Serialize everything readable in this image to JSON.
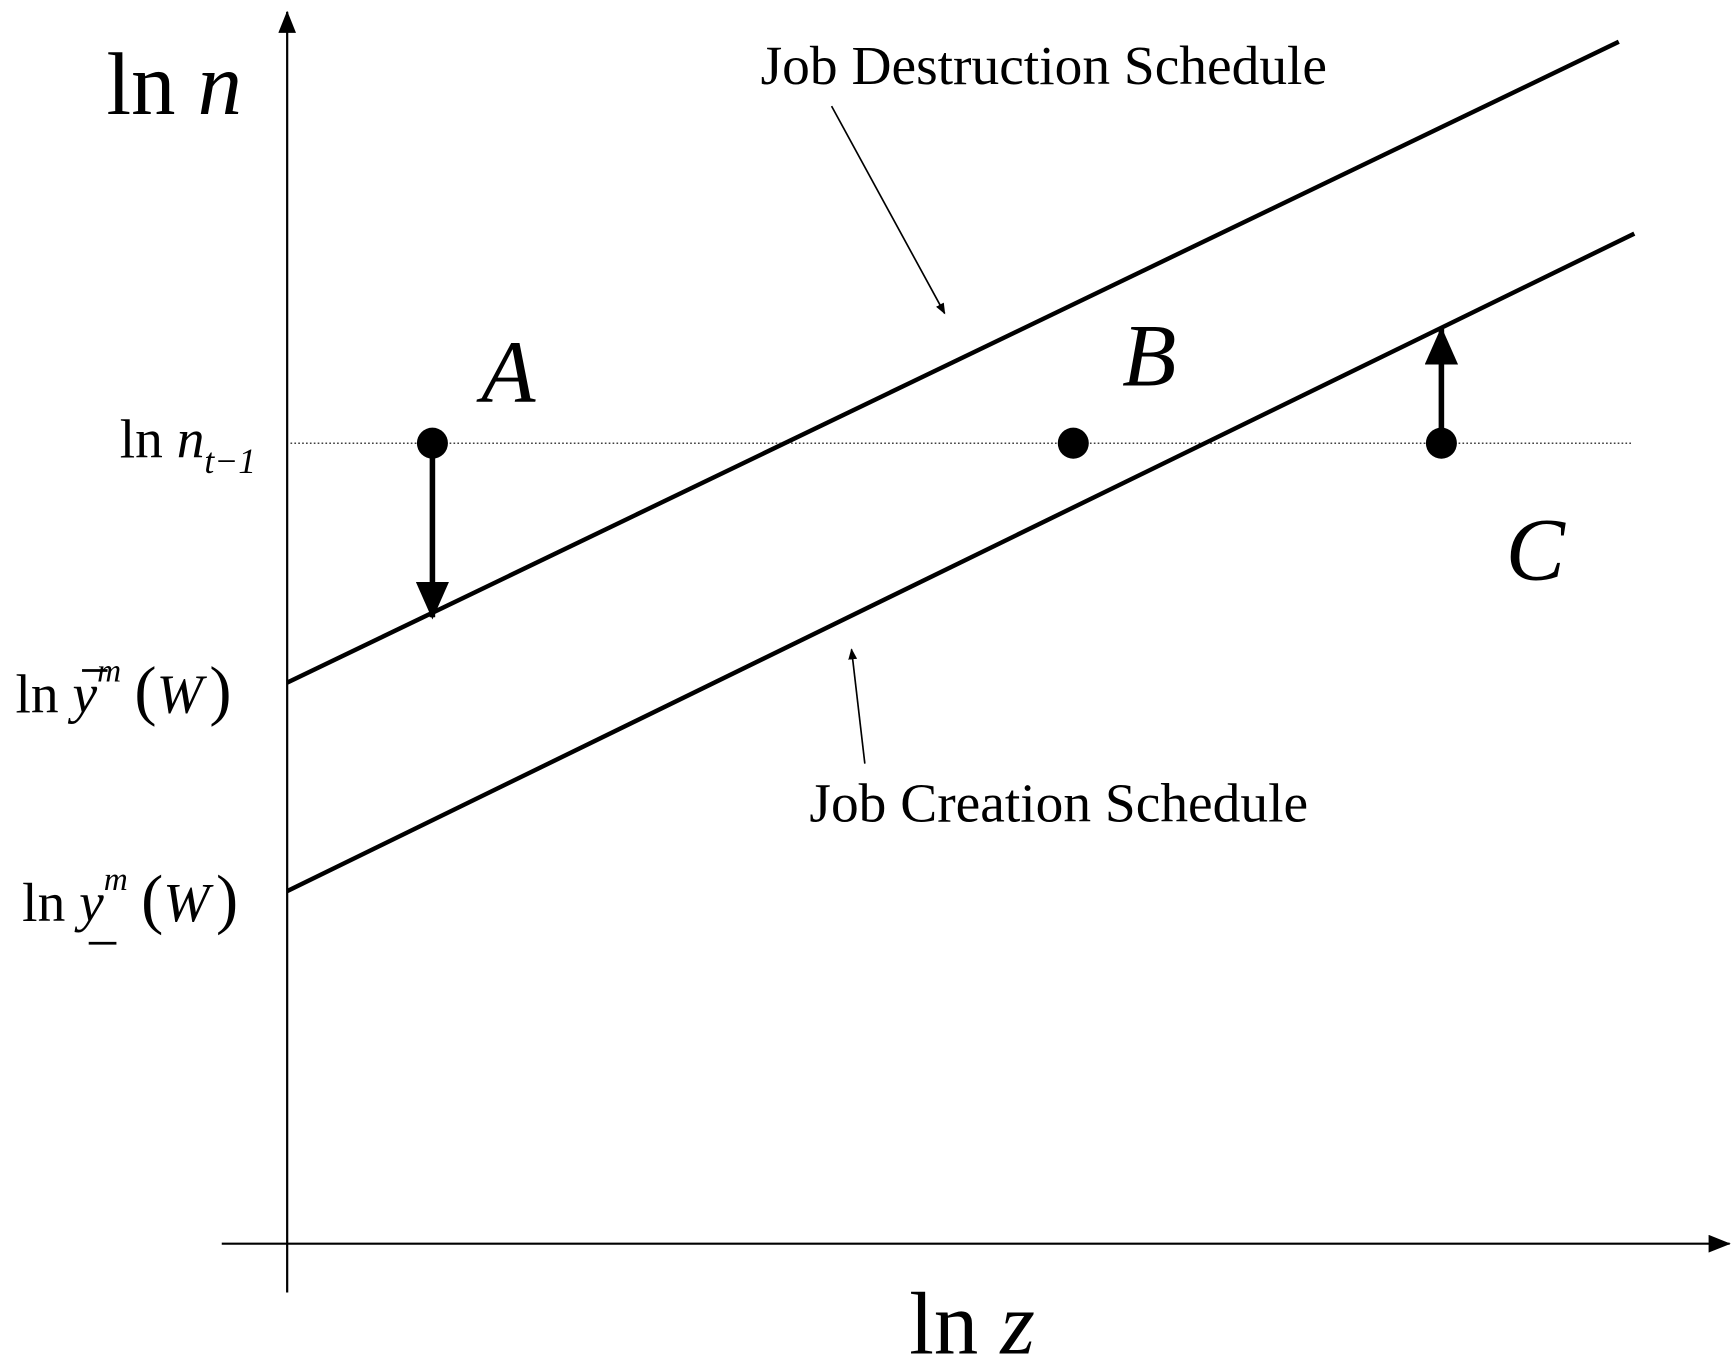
{
  "axes": {
    "y_label": {
      "prefix": "ln",
      "variable": "n"
    },
    "x_label": {
      "prefix": "ln",
      "variable": "z"
    }
  },
  "y_labels": [
    {
      "prefix": "ln",
      "variable": "n",
      "subscript": "t−1"
    },
    {
      "prefix": "ln",
      "variable": "y",
      "superscript": "m",
      "open": "(",
      "argument": "W",
      "close": ")"
    },
    {
      "prefix": "ln",
      "variable": "y",
      "superscript": "m",
      "open": "(",
      "argument": "W",
      "close": ")"
    }
  ],
  "schedules": [
    {
      "label": "Job Destruction Schedule"
    },
    {
      "label": "Job Creation Schedule"
    }
  ],
  "points": [
    {
      "label": "A"
    },
    {
      "label": "B"
    },
    {
      "label": "C"
    }
  ]
}
